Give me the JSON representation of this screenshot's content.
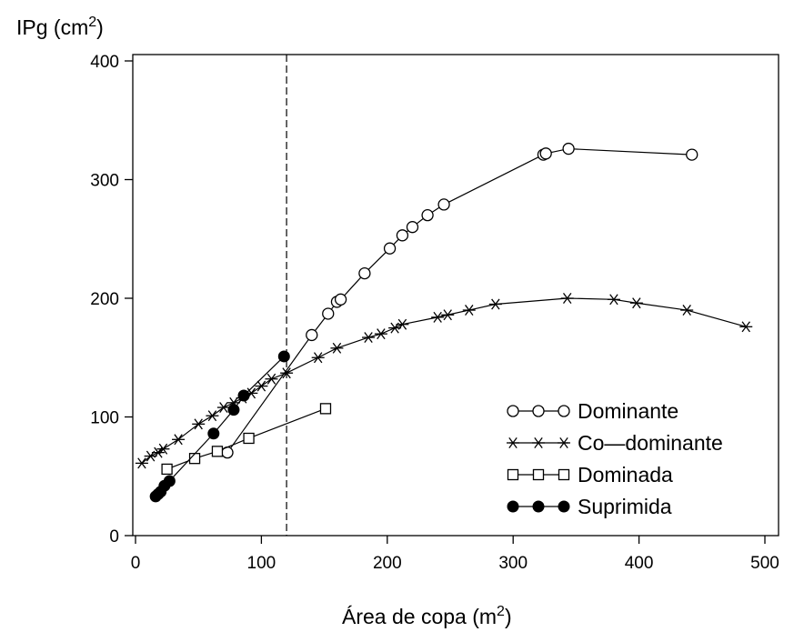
{
  "chart_data": {
    "type": "line",
    "title": "",
    "ylabel": "IPg (cm",
    "ylabel_sup": "2",
    "ylabel_end": ")",
    "xlabel": "Área de copa (m",
    "xlabel_sup": "2",
    "xlabel_end": ")",
    "xlim": [
      0,
      500
    ],
    "ylim": [
      0,
      400
    ],
    "xticks": [
      0,
      100,
      200,
      300,
      400,
      500
    ],
    "yticks": [
      0,
      100,
      200,
      300,
      400
    ],
    "reference_line_x": 120,
    "legend_position": "bottom-right",
    "series": [
      {
        "name": "Dominante",
        "marker": "open-circle",
        "x": [
          73,
          140,
          153,
          160,
          163,
          182,
          202,
          212,
          220,
          232,
          245,
          324,
          326,
          344,
          442
        ],
        "y": [
          70,
          169,
          187,
          197,
          199,
          221,
          242,
          253,
          260,
          270,
          279,
          321,
          322,
          326,
          321
        ]
      },
      {
        "name": "Co—dominante",
        "marker": "star",
        "x": [
          5,
          12,
          18,
          22,
          34,
          50,
          61,
          70,
          78,
          85,
          92,
          100,
          108,
          120,
          145,
          160,
          185,
          195,
          206,
          212,
          240,
          248,
          265,
          286,
          343,
          380,
          398,
          438,
          485
        ],
        "y": [
          61,
          67,
          70,
          73,
          81,
          94,
          101,
          108,
          112,
          116,
          120,
          126,
          132,
          137,
          150,
          158,
          167,
          170,
          175,
          178,
          184,
          186,
          190,
          195,
          200,
          199,
          196,
          190,
          176
        ]
      },
      {
        "name": "Dominada",
        "marker": "open-square",
        "x": [
          25,
          47,
          65,
          90,
          151
        ],
        "y": [
          56,
          65,
          71,
          82,
          107
        ]
      },
      {
        "name": "Suprimida",
        "marker": "filled-circle",
        "x": [
          16,
          18,
          20,
          23,
          27,
          62,
          78,
          86,
          118
        ],
        "y": [
          33,
          35,
          37,
          42,
          46,
          86,
          106,
          118,
          151
        ]
      }
    ]
  }
}
